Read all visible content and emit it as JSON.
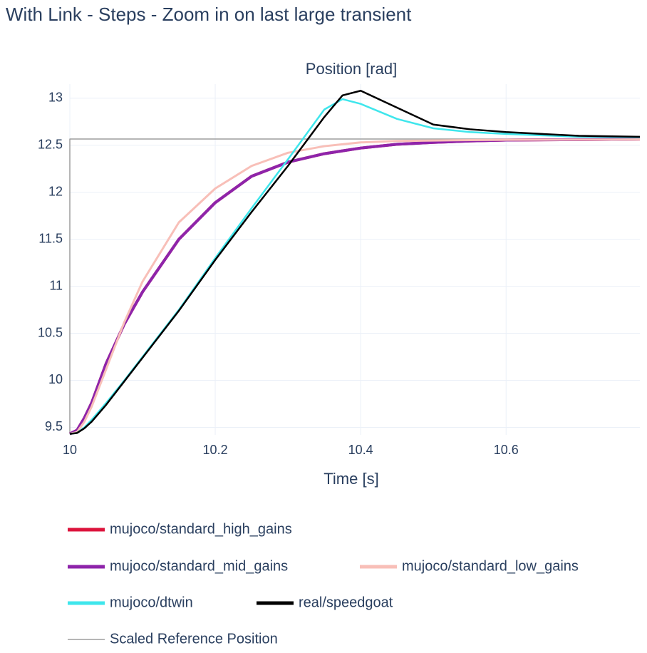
{
  "chart_data": {
    "type": "line",
    "title": "With Link - Steps - Zoom in on last large transient",
    "subtitle": "Position [rad]",
    "x_label": "Time [s]",
    "x": [
      10,
      10.01,
      10.02,
      10.03,
      10.05,
      10.075,
      10.1,
      10.15,
      10.2,
      10.25,
      10.3,
      10.35,
      10.375,
      10.4,
      10.45,
      10.5,
      10.55,
      10.6,
      10.7,
      10.784
    ],
    "series": [
      {
        "name": "mujoco/standard_high_gains",
        "color": "#dc143c",
        "width": 4,
        "values": [
          9.43,
          9.47,
          9.6,
          9.76,
          10.18,
          10.6,
          10.94,
          11.5,
          11.89,
          12.17,
          12.32,
          12.41,
          12.44,
          12.47,
          12.51,
          12.53,
          12.545,
          12.555,
          12.56,
          12.565
        ]
      },
      {
        "name": "mujoco/standard_mid_gains",
        "color": "#8e24aa",
        "width": 4,
        "values": [
          9.43,
          9.47,
          9.6,
          9.76,
          10.18,
          10.6,
          10.94,
          11.5,
          11.89,
          12.17,
          12.32,
          12.41,
          12.44,
          12.47,
          12.51,
          12.53,
          12.545,
          12.555,
          12.56,
          12.565
        ]
      },
      {
        "name": "mujoco/standard_low_gains",
        "color": "#f8bfb8",
        "width": 3,
        "values": [
          9.43,
          9.45,
          9.56,
          9.72,
          10.12,
          10.62,
          11.05,
          11.68,
          12.04,
          12.28,
          12.42,
          12.49,
          12.51,
          12.53,
          12.545,
          12.55,
          12.555,
          12.558,
          12.56,
          12.562
        ]
      },
      {
        "name": "mujoco/dtwin",
        "color": "#3fe6ec",
        "width": 2.5,
        "values": [
          9.43,
          9.44,
          9.5,
          9.58,
          9.76,
          10.0,
          10.25,
          10.75,
          11.3,
          11.83,
          12.35,
          12.88,
          12.99,
          12.94,
          12.78,
          12.68,
          12.64,
          12.62,
          12.59,
          12.585
        ]
      },
      {
        "name": "real/speedgoat",
        "color": "#000000",
        "width": 2.5,
        "values": [
          9.43,
          9.44,
          9.49,
          9.56,
          9.74,
          9.99,
          10.24,
          10.74,
          11.28,
          11.79,
          12.28,
          12.8,
          13.03,
          13.08,
          12.9,
          12.72,
          12.67,
          12.64,
          12.6,
          12.59
        ]
      },
      {
        "name": "Scaled Reference Position",
        "color": "#9e9e9e",
        "width": 1.5,
        "x": [
          10,
          10,
          10.784
        ],
        "values": [
          9.43,
          12.566,
          12.566
        ]
      }
    ],
    "xlim": [
      10,
      10.784
    ],
    "ylim": [
      9.42,
      13.15
    ],
    "xticks": [
      10,
      10.2,
      10.4,
      10.6
    ],
    "yticks": [
      9.5,
      10,
      10.5,
      11,
      11.5,
      12,
      12.5,
      13
    ],
    "grid": true
  }
}
